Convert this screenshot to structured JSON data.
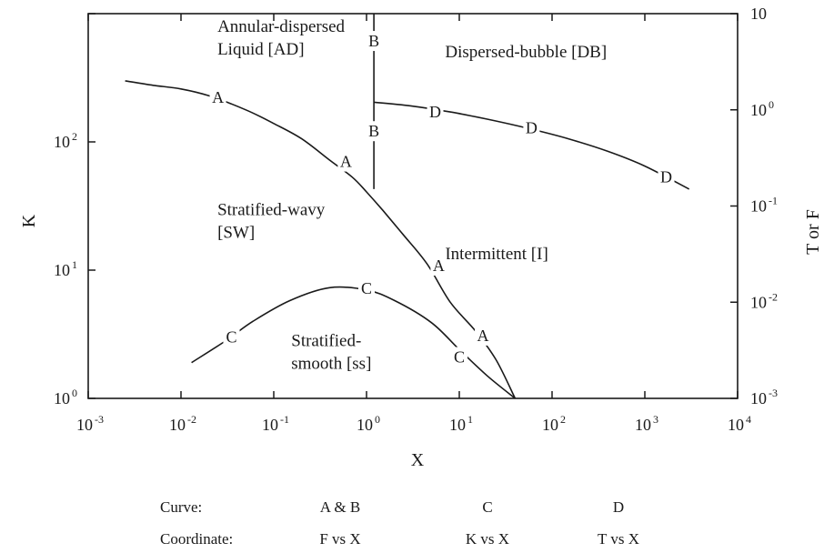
{
  "chart_data": {
    "type": "line",
    "title": "",
    "xlabel": "X",
    "ylabel": "K",
    "ylabel_right": "T or F",
    "x_scale": "log",
    "y_scale": "log",
    "xlim": [
      0.001,
      10000
    ],
    "ylim_left": [
      1,
      1000
    ],
    "ylim_right": [
      0.001,
      10
    ],
    "grid": false,
    "x_ticks": [
      {
        "base": "10",
        "exp": "-3"
      },
      {
        "base": "10",
        "exp": "-2"
      },
      {
        "base": "10",
        "exp": "-1"
      },
      {
        "base": "10",
        "exp": "0"
      },
      {
        "base": "10",
        "exp": "1"
      },
      {
        "base": "10",
        "exp": "2"
      },
      {
        "base": "10",
        "exp": "3"
      },
      {
        "base": "10",
        "exp": "4"
      }
    ],
    "y_ticks_left": [
      {
        "value": 1,
        "base": "10",
        "exp": "0"
      },
      {
        "value": 10,
        "base": "10",
        "exp": "1"
      },
      {
        "value": 100,
        "base": "10",
        "exp": "2"
      }
    ],
    "y_ticks_right": [
      {
        "value": 0.001,
        "base": "10",
        "exp": "-3"
      },
      {
        "value": 0.01,
        "base": "10",
        "exp": "-2"
      },
      {
        "value": 0.1,
        "base": "10",
        "exp": "-1"
      },
      {
        "value": 1,
        "base": "10",
        "exp": "0"
      },
      {
        "value": 10,
        "base": "10",
        "exp": ""
      }
    ],
    "series": [
      {
        "name": "A",
        "axis": "right",
        "x": [
          0.0025,
          0.005,
          0.01,
          0.02,
          0.05,
          0.1,
          0.2,
          0.4,
          0.7,
          1.0,
          1.5,
          2.5,
          4.5,
          8,
          15,
          25,
          40
        ],
        "y": [
          2.0,
          1.8,
          1.65,
          1.4,
          1.0,
          0.72,
          0.5,
          0.3,
          0.2,
          0.14,
          0.09,
          0.05,
          0.025,
          0.01,
          0.005,
          0.0025,
          0.001
        ],
        "labels": [
          {
            "x": 0.025,
            "y": 1.35
          },
          {
            "x": 0.6,
            "y": 0.29
          },
          {
            "x": 6,
            "y": 0.024
          },
          {
            "x": 18,
            "y": 0.0045
          }
        ]
      },
      {
        "name": "B",
        "axis": "right",
        "x": [
          1.2,
          1.2
        ],
        "y": [
          0.15,
          10
        ],
        "labels": [
          {
            "x": 1.2,
            "y": 5.2
          },
          {
            "x": 1.2,
            "y": 0.6
          }
        ]
      },
      {
        "name": "C",
        "axis": "left",
        "x": [
          0.013,
          0.03,
          0.06,
          0.15,
          0.4,
          1.0,
          2.0,
          5.0,
          10,
          20,
          40
        ],
        "y": [
          1.9,
          2.8,
          4.0,
          5.8,
          7.3,
          7.0,
          5.8,
          3.9,
          2.4,
          1.5,
          1.0
        ],
        "labels": [
          {
            "x": 0.035,
            "y": 3.0
          },
          {
            "x": 1.0,
            "y": 7.2
          },
          {
            "x": 10,
            "y": 2.1
          }
        ]
      },
      {
        "name": "D",
        "axis": "right",
        "x": [
          1.2,
          3.0,
          8.0,
          20,
          60,
          150,
          400,
          1000,
          3000
        ],
        "y": [
          1.2,
          1.1,
          0.95,
          0.8,
          0.63,
          0.5,
          0.37,
          0.26,
          0.15
        ],
        "labels": [
          {
            "x": 5.5,
            "y": 0.95
          },
          {
            "x": 60,
            "y": 0.65
          },
          {
            "x": 1700,
            "y": 0.2
          }
        ]
      }
    ],
    "regions": [
      {
        "lines": [
          "Annular-dispersed",
          "Liquid [AD]"
        ],
        "x": 0.12,
        "y": 6.5
      },
      {
        "lines": [
          "Dispersed-bubble [DB]"
        ],
        "x": 60,
        "y": 3.5
      },
      {
        "lines": [
          "Stratified-wavy",
          "[SW]"
        ],
        "x": 0.12,
        "y": 0.08
      },
      {
        "lines": [
          "Intermittent [I]"
        ],
        "x": 60,
        "y": 0.028
      },
      {
        "lines": [
          "Stratified-",
          "smooth [ss]"
        ],
        "x": 0.75,
        "y": 0.0035
      }
    ],
    "legend_table": {
      "row1": [
        "Curve:",
        "A & B",
        "C",
        "D"
      ],
      "row2": [
        "Coordinate:",
        "F vs X",
        "K vs X",
        "T vs X"
      ]
    }
  }
}
